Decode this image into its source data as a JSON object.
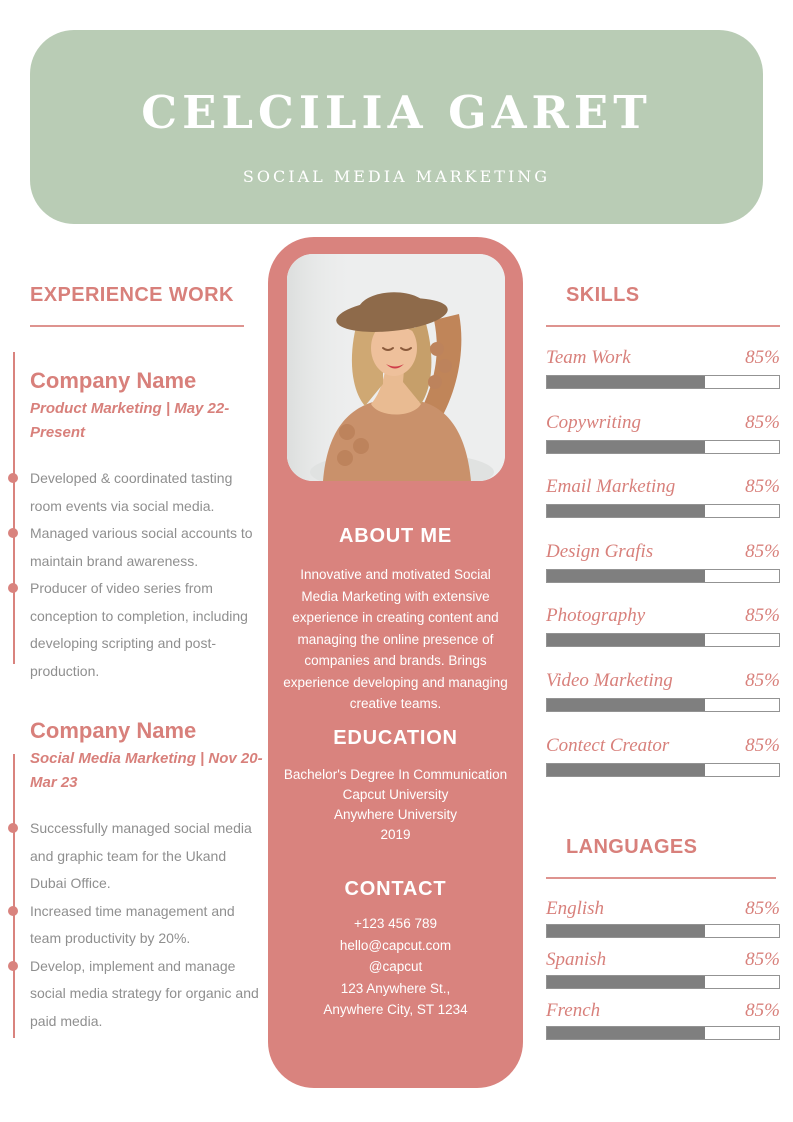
{
  "colors": {
    "green": "#b9ccb5",
    "pink": "#d9837e",
    "accent": "#d8807b",
    "bar-fill": "#7f7f7f",
    "bar-border": "#939393",
    "body-text": "#8f8f8f"
  },
  "header": {
    "name": "CELCILIA GARET",
    "subtitle": "SOCIAL MEDIA MARKETING"
  },
  "experience": {
    "title": "EXPERIENCE WORK",
    "jobs": [
      {
        "company": "Company Name",
        "meta": "Product Marketing | May 22-Present",
        "bullets": [
          "Developed & coordinated tasting\nroom events via social media.",
          "Managed various social accounts to\nmaintain brand awareness.",
          "Producer of video series from\nconception to completion, including\ndeveloping scripting and post-\nproduction."
        ]
      },
      {
        "company": "Company Name",
        "meta": "Social Media Marketing | Nov 20-\nMar 23",
        "bullets": [
          "Successfully managed social media\nand graphic team for the Ukand\nDubai Office.",
          "Increased time management and\nteam productivity by 20%.",
          "Develop, implement and manage\nsocial media strategy for organic and\npaid media."
        ]
      }
    ]
  },
  "profile": {
    "photo_alt": "woman wearing sun hat and knitted cardigan",
    "about": {
      "title": "ABOUT ME",
      "text": "Innovative and motivated Social\nMedia Marketing with extensive\nexperience in creating content and\nmanaging the online presence of\ncompanies and brands. Brings\nexperience developing and managing\ncreative teams."
    },
    "education": {
      "title": "EDUCATION",
      "text": "Bachelor's Degree In Communication\nCapcut University\nAnywhere University\n2019"
    },
    "contact": {
      "title": "CONTACT",
      "text": "+123  456 789\nhello@capcut.com\n@capcut\n123 Anywhere St.,\nAnywhere City, ST 1234"
    }
  },
  "skills": {
    "title": "SKILLS",
    "items": [
      {
        "label": "Team Work",
        "percent": "85%",
        "fill": 68
      },
      {
        "label": "Copywriting",
        "percent": "85%",
        "fill": 68
      },
      {
        "label": "Email Marketing",
        "percent": "85%",
        "fill": 68
      },
      {
        "label": "Design Grafis",
        "percent": "85%",
        "fill": 68
      },
      {
        "label": "Photography",
        "percent": "85%",
        "fill": 68
      },
      {
        "label": "Video Marketing",
        "percent": "85%",
        "fill": 68
      },
      {
        "label": "Contect Creator",
        "percent": "85%",
        "fill": 68
      }
    ]
  },
  "languages": {
    "title": "LANGUAGES",
    "items": [
      {
        "label": "English",
        "percent": "85%",
        "fill": 68
      },
      {
        "label": "Spanish",
        "percent": "85%",
        "fill": 68
      },
      {
        "label": "French",
        "percent": "85%",
        "fill": 68
      }
    ]
  }
}
